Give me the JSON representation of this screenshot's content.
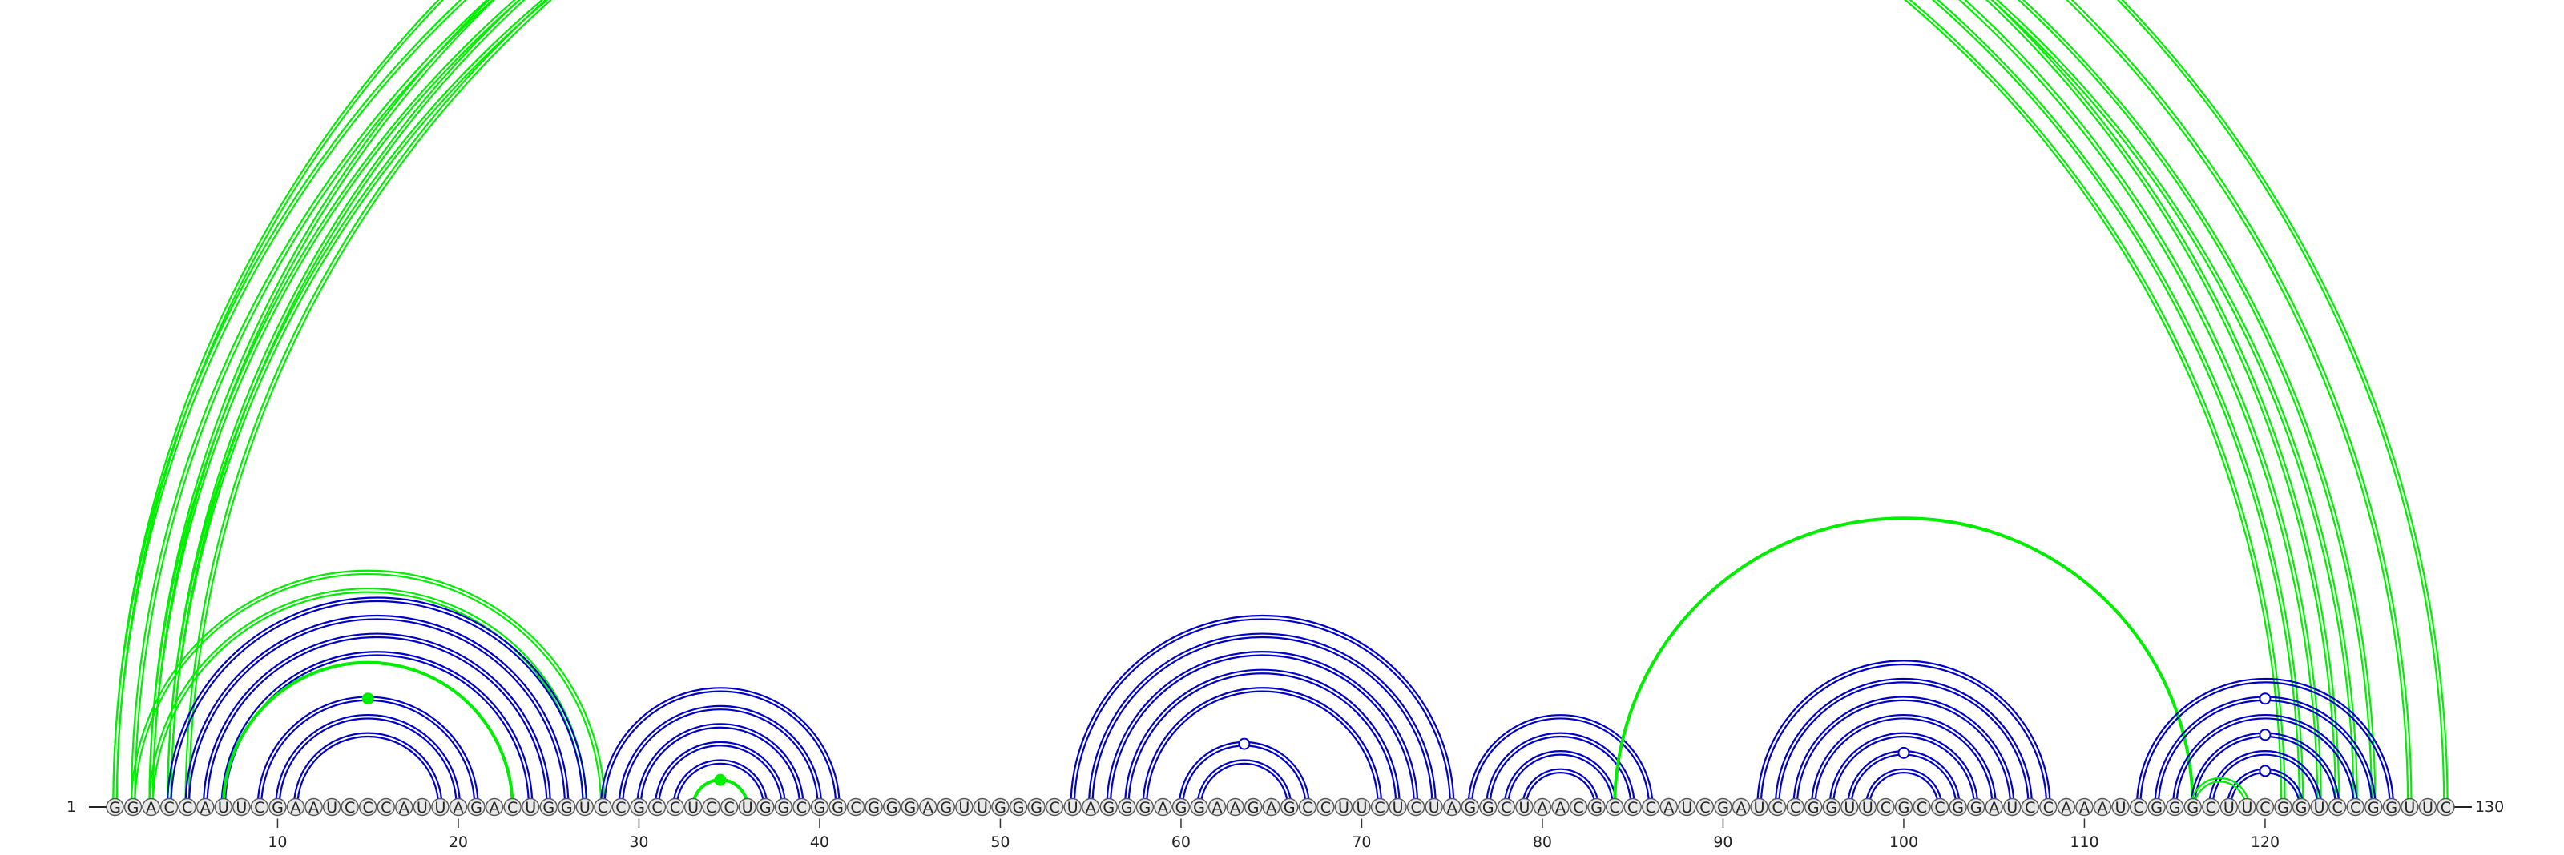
{
  "diagram": {
    "type": "rna-arc-diagram",
    "sequence": "GGACCAUUCGAAUCCCAUUAGACUGGUCCGCCUCCUGGCGGCGGGAGUUGGGCUAGGGAGGAAGAGCCUUCUCUAGGCUAACGCCCAUCGAUCCGGUUCGCCGGAUCCAAAUCGGGCUUCGGUCCGGUUC",
    "start_label": "1",
    "end_label": "130",
    "tick_labels": [
      "10",
      "20",
      "30",
      "40",
      "50",
      "60",
      "70",
      "80",
      "90",
      "100",
      "110",
      "120"
    ],
    "colors": {
      "green": "#00ee00",
      "blue": "#0000cc",
      "text": "#222222",
      "circle_fill": "#e8e8e8",
      "circle_stroke": "#555555"
    },
    "arc_groups": [
      {
        "id": "g-long-outer-1",
        "color": "green",
        "double": true,
        "pairs": [
          [
            1,
            130
          ],
          [
            3,
            128
          ],
          [
            4,
            126
          ],
          [
            5,
            125
          ]
        ]
      },
      {
        "id": "g-long-outer-2",
        "color": "green",
        "double": true,
        "pairs": [
          [
            1,
            124
          ],
          [
            2,
            123
          ],
          [
            3,
            122
          ],
          [
            4,
            121
          ]
        ]
      },
      {
        "id": "g-stem1-green",
        "color": "green",
        "double": true,
        "pairs": [
          [
            2,
            28
          ],
          [
            3,
            27
          ]
        ]
      },
      {
        "id": "b-stem1",
        "color": "blue",
        "double": true,
        "pairs": [
          [
            4,
            27
          ],
          [
            5,
            26
          ],
          [
            6,
            25
          ],
          [
            7,
            24
          ],
          [
            9,
            21
          ],
          [
            10,
            20
          ],
          [
            11,
            19
          ]
        ]
      },
      {
        "id": "g-stem1-inner",
        "color": "green",
        "double": false,
        "pairs": [
          [
            7,
            23
          ]
        ]
      },
      {
        "id": "b-stem2",
        "color": "blue",
        "double": true,
        "pairs": [
          [
            28,
            41
          ],
          [
            29,
            40
          ],
          [
            30,
            39
          ],
          [
            31,
            38
          ],
          [
            32,
            37
          ]
        ]
      },
      {
        "id": "g-stem2-inner",
        "color": "green",
        "double": false,
        "pairs": [
          [
            33,
            36
          ]
        ]
      },
      {
        "id": "b-stem3",
        "color": "blue",
        "double": true,
        "pairs": [
          [
            54,
            75
          ],
          [
            55,
            74
          ],
          [
            56,
            73
          ],
          [
            57,
            72
          ],
          [
            58,
            71
          ],
          [
            60,
            67
          ],
          [
            61,
            66
          ]
        ]
      },
      {
        "id": "b-stem4",
        "color": "blue",
        "double": true,
        "pairs": [
          [
            76,
            86
          ],
          [
            77,
            85
          ],
          [
            78,
            84
          ],
          [
            79,
            83
          ]
        ]
      },
      {
        "id": "g-pk",
        "color": "green",
        "double": false,
        "pairs": [
          [
            84,
            116
          ]
        ]
      },
      {
        "id": "b-stem5",
        "color": "blue",
        "double": true,
        "pairs": [
          [
            92,
            108
          ],
          [
            93,
            107
          ],
          [
            94,
            106
          ],
          [
            95,
            105
          ],
          [
            96,
            104
          ],
          [
            97,
            103
          ],
          [
            98,
            102
          ]
        ]
      },
      {
        "id": "b-stem6",
        "color": "blue",
        "double": true,
        "pairs": [
          [
            113,
            127
          ],
          [
            114,
            126
          ],
          [
            115,
            125
          ],
          [
            116,
            124
          ],
          [
            117,
            123
          ],
          [
            118,
            122
          ]
        ]
      },
      {
        "id": "g-stem6-cross",
        "color": "green",
        "double": true,
        "pairs": [
          [
            116,
            119
          ]
        ]
      }
    ],
    "markers": [
      {
        "arc": [
          1,
          130
        ],
        "kind": "open",
        "color": "green"
      },
      {
        "arc": [
          9,
          21
        ],
        "kind": "filled",
        "color": "green"
      },
      {
        "arc": [
          33,
          36
        ],
        "kind": "filled",
        "color": "green"
      },
      {
        "arc": [
          60,
          67
        ],
        "kind": "open",
        "color": "blue"
      },
      {
        "arc": [
          97,
          103
        ],
        "kind": "open",
        "color": "blue"
      },
      {
        "arc": [
          114,
          126
        ],
        "kind": "open",
        "color": "blue"
      },
      {
        "arc": [
          116,
          124
        ],
        "kind": "open",
        "color": "blue"
      },
      {
        "arc": [
          118,
          122
        ],
        "kind": "open",
        "color": "blue"
      }
    ]
  }
}
